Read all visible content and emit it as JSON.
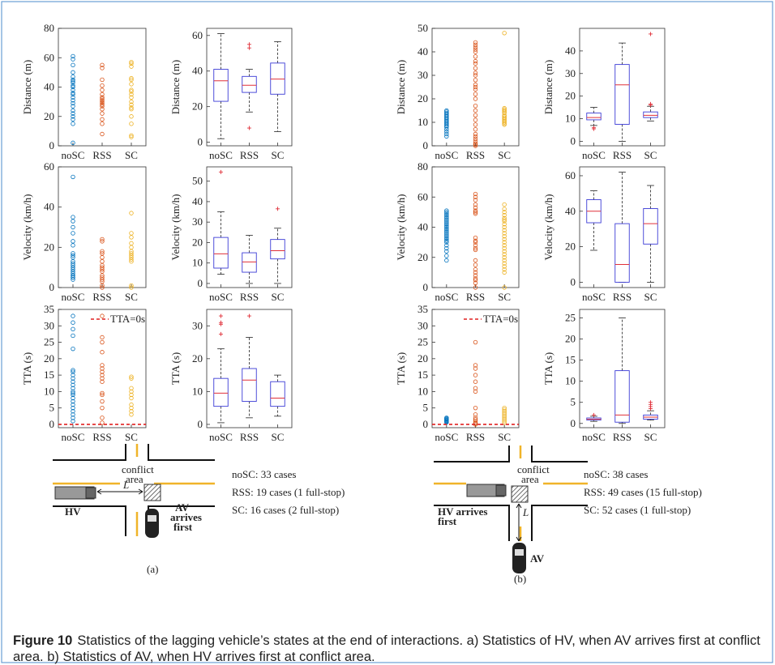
{
  "chart_data": [
    {
      "type": "scatter",
      "ylabel": "Distance (m)",
      "categories": [
        "noSC",
        "RSS",
        "SC"
      ],
      "colors": [
        "#0072bd",
        "#d95319",
        "#edb120"
      ],
      "ylim": [
        0,
        80
      ],
      "yticks": [
        0,
        20,
        40,
        60,
        80
      ],
      "values": [
        [
          61,
          59,
          55,
          50,
          47,
          45,
          44,
          43,
          41,
          40,
          38,
          36,
          35,
          33,
          31,
          29,
          27,
          24,
          22,
          20,
          18,
          15,
          2
        ],
        [
          55,
          53,
          45,
          41,
          38,
          35,
          33,
          32,
          31,
          30,
          29,
          28,
          27,
          25,
          22,
          18,
          15,
          8
        ],
        [
          57,
          56,
          54,
          46,
          45,
          42,
          38,
          37,
          35,
          33,
          30,
          28,
          26,
          25,
          20,
          15,
          7,
          6
        ]
      ]
    },
    {
      "type": "box",
      "ylabel": "Distance (m)",
      "categories": [
        "noSC",
        "RSS",
        "SC"
      ],
      "box_color": "#3b3bd6",
      "median_color": "#e0303a",
      "outlier_color": "#e0303a",
      "ylim": [
        -2,
        64
      ],
      "yticks": [
        0,
        20,
        40,
        60
      ],
      "boxes": [
        {
          "low": 2,
          "q1": 23,
          "median": 34.5,
          "q3": 41,
          "high": 61,
          "outliers": []
        },
        {
          "low": 17,
          "q1": 28,
          "median": 32,
          "q3": 37,
          "high": 41,
          "outliers": [
            55,
            53,
            8
          ]
        },
        {
          "low": 6,
          "q1": 27,
          "median": 35.5,
          "q3": 44.5,
          "high": 56.5,
          "outliers": []
        }
      ]
    },
    {
      "type": "scatter",
      "ylabel": "Distance (m)",
      "categories": [
        "noSC",
        "RSS",
        "SC"
      ],
      "colors": [
        "#0072bd",
        "#d95319",
        "#edb120"
      ],
      "ylim": [
        0,
        50
      ],
      "yticks": [
        0,
        10,
        20,
        30,
        40,
        50
      ],
      "values": [
        [
          15,
          14.5,
          14,
          13.5,
          13,
          12.5,
          12,
          11.5,
          11,
          10.5,
          10,
          9.5,
          9,
          8.5,
          8,
          7,
          6,
          5,
          4
        ],
        [
          44,
          43,
          42,
          41,
          40,
          38,
          36,
          35,
          33,
          31,
          30,
          28,
          26,
          25,
          24,
          22,
          20,
          17,
          15,
          13,
          11,
          9,
          7,
          5,
          4,
          3,
          2,
          1,
          0.5,
          0
        ],
        [
          48,
          16,
          15.5,
          15,
          14.5,
          14,
          13,
          12.5,
          12,
          11.5,
          11,
          10.5,
          10,
          9.5,
          9
        ]
      ]
    },
    {
      "type": "box",
      "ylabel": "Distance (m)",
      "categories": [
        "noSC",
        "RSS",
        "SC"
      ],
      "box_color": "#3b3bd6",
      "median_color": "#e0303a",
      "outlier_color": "#e0303a",
      "ylim": [
        -2,
        50
      ],
      "yticks": [
        0,
        10,
        20,
        30,
        40
      ],
      "boxes": [
        {
          "low": 7,
          "q1": 9.5,
          "median": 10.5,
          "q3": 12.5,
          "high": 15,
          "outliers": [
            5.5,
            6
          ]
        },
        {
          "low": 0,
          "q1": 7.5,
          "median": 25,
          "q3": 34,
          "high": 43.5,
          "outliers": []
        },
        {
          "low": 9,
          "q1": 10.5,
          "median": 11.5,
          "q3": 13,
          "high": 15.5,
          "outliers": [
            47.5,
            16.5,
            16
          ]
        }
      ]
    },
    {
      "type": "scatter",
      "ylabel": "Velocity (km/h)",
      "categories": [
        "noSC",
        "RSS",
        "SC"
      ],
      "colors": [
        "#0072bd",
        "#d95319",
        "#edb120"
      ],
      "ylim": [
        0,
        60
      ],
      "yticks": [
        0,
        20,
        40,
        60
      ],
      "values": [
        [
          55,
          35,
          33,
          30,
          27,
          23,
          21,
          17,
          16,
          15,
          13,
          12,
          11,
          10,
          9,
          8,
          7,
          6,
          6,
          5,
          5,
          4
        ],
        [
          24,
          23,
          18,
          17,
          15,
          13,
          11,
          10,
          9,
          8,
          6,
          5,
          4,
          3,
          1,
          0
        ],
        [
          37,
          27,
          25,
          22,
          20,
          18,
          17,
          16,
          15,
          14,
          13,
          1,
          0
        ]
      ]
    },
    {
      "type": "box",
      "ylabel": "Velocity (km/h)",
      "categories": [
        "noSC",
        "RSS",
        "SC"
      ],
      "box_color": "#3b3bd6",
      "median_color": "#e0303a",
      "outlier_color": "#e0303a",
      "ylim": [
        -2,
        57
      ],
      "yticks": [
        0,
        10,
        20,
        30,
        40,
        50
      ],
      "boxes": [
        {
          "low": 4.5,
          "q1": 7.5,
          "median": 14.5,
          "q3": 22.5,
          "high": 35,
          "outliers": [
            54.5
          ]
        },
        {
          "low": 0,
          "q1": 5.5,
          "median": 10.5,
          "q3": 15,
          "high": 23.5,
          "outliers": []
        },
        {
          "low": 0,
          "q1": 12,
          "median": 16,
          "q3": 21.5,
          "high": 27,
          "outliers": [
            36.5
          ]
        }
      ]
    },
    {
      "type": "scatter",
      "ylabel": "Velocity (km/h)",
      "categories": [
        "noSC",
        "RSS",
        "SC"
      ],
      "colors": [
        "#0072bd",
        "#d95319",
        "#edb120"
      ],
      "ylim": [
        0,
        80
      ],
      "yticks": [
        0,
        20,
        40,
        60,
        80
      ],
      "values": [
        [
          51,
          50,
          49,
          48,
          47,
          46,
          45,
          44,
          43,
          42,
          41,
          40,
          39,
          38,
          37,
          36,
          35,
          34,
          33,
          32,
          31,
          30,
          28,
          26,
          24,
          21,
          18
        ],
        [
          62,
          60,
          58,
          55,
          53,
          51,
          50,
          49,
          33,
          31,
          30,
          28,
          26,
          25,
          18,
          15,
          12,
          10,
          8,
          6,
          5,
          3,
          0
        ],
        [
          55,
          52,
          50,
          48,
          46,
          45,
          44,
          42,
          40,
          38,
          36,
          34,
          32,
          30,
          28,
          26,
          24,
          22,
          20,
          18,
          16,
          14,
          12,
          10,
          0
        ]
      ]
    },
    {
      "type": "box",
      "ylabel": "Velocity (km/h)",
      "categories": [
        "noSC",
        "RSS",
        "SC"
      ],
      "box_color": "#3b3bd6",
      "median_color": "#e0303a",
      "outlier_color": "#e0303a",
      "ylim": [
        -3,
        65
      ],
      "yticks": [
        0,
        20,
        40,
        60
      ],
      "boxes": [
        {
          "low": 18,
          "q1": 33.5,
          "median": 40,
          "q3": 46.5,
          "high": 51.5,
          "outliers": []
        },
        {
          "low": 0,
          "q1": 0,
          "median": 10,
          "q3": 33,
          "high": 62,
          "outliers": []
        },
        {
          "low": 0,
          "q1": 21.5,
          "median": 33,
          "q3": 41.5,
          "high": 54.5,
          "outliers": []
        }
      ]
    },
    {
      "type": "scatter",
      "ylabel": "TTA (s)",
      "categories": [
        "noSC",
        "RSS",
        "SC"
      ],
      "colors": [
        "#0072bd",
        "#d95319",
        "#edb120"
      ],
      "ylim": [
        -1,
        35
      ],
      "yticks": [
        0,
        5,
        10,
        15,
        20,
        25,
        30,
        35
      ],
      "ref_line": {
        "value": 0,
        "label": "TTA=0s",
        "color": "#e02020"
      },
      "values": [
        [
          33,
          31,
          29,
          27,
          23,
          16.5,
          16,
          15,
          14,
          13,
          12,
          11,
          10,
          9.5,
          9,
          8,
          7,
          6,
          5,
          4,
          3,
          2,
          1
        ],
        [
          33,
          26.5,
          25,
          22,
          18,
          17,
          16,
          15,
          14,
          13,
          9.5,
          9,
          7,
          5,
          2,
          0.5
        ],
        [
          14.5,
          14,
          11,
          10,
          9,
          8,
          6,
          5,
          4,
          3
        ]
      ]
    },
    {
      "type": "box",
      "ylabel": "TTA (s)",
      "categories": [
        "noSC",
        "RSS",
        "SC"
      ],
      "box_color": "#3b3bd6",
      "median_color": "#e0303a",
      "outlier_color": "#e0303a",
      "ylim": [
        -1,
        35
      ],
      "yticks": [
        0,
        10,
        20,
        30
      ],
      "boxes": [
        {
          "low": 0.5,
          "q1": 5.5,
          "median": 9.5,
          "q3": 14,
          "high": 23,
          "outliers": [
            33,
            31,
            30.5,
            27.5
          ]
        },
        {
          "low": 2,
          "q1": 7,
          "median": 13.5,
          "q3": 17,
          "high": 26.5,
          "outliers": [
            33
          ]
        },
        {
          "low": 2.5,
          "q1": 5.5,
          "median": 8,
          "q3": 13,
          "high": 15,
          "outliers": []
        }
      ]
    },
    {
      "type": "scatter",
      "ylabel": "TTA (s)",
      "categories": [
        "noSC",
        "RSS",
        "SC"
      ],
      "colors": [
        "#0072bd",
        "#d95319",
        "#edb120"
      ],
      "ylim": [
        -1,
        35
      ],
      "yticks": [
        0,
        5,
        10,
        15,
        20,
        25,
        30,
        35
      ],
      "ref_line": {
        "value": 0,
        "label": "TTA=0s",
        "color": "#e02020"
      },
      "values": [
        [
          2,
          1.8,
          1.6,
          1.4,
          1.2,
          1,
          0.8,
          0.6
        ],
        [
          25,
          18,
          17,
          15,
          13,
          11,
          10,
          5,
          3,
          2,
          1.5,
          1,
          0.5,
          0.3,
          0
        ],
        [
          5,
          4.5,
          4,
          3.5,
          3,
          2.5,
          2,
          1.5,
          1,
          0.5
        ]
      ]
    },
    {
      "type": "box",
      "ylabel": "TTA (s)",
      "categories": [
        "noSC",
        "RSS",
        "SC"
      ],
      "box_color": "#3b3bd6",
      "median_color": "#e0303a",
      "outlier_color": "#e0303a",
      "ylim": [
        -1,
        27
      ],
      "yticks": [
        0,
        5,
        10,
        15,
        20,
        25
      ],
      "boxes": [
        {
          "low": 0.5,
          "q1": 0.8,
          "median": 1,
          "q3": 1.3,
          "high": 1.7,
          "outliers": [
            2
          ]
        },
        {
          "low": 0,
          "q1": 0.3,
          "median": 2,
          "q3": 12.5,
          "high": 25,
          "outliers": []
        },
        {
          "low": 0.8,
          "q1": 1,
          "median": 1.5,
          "q3": 2,
          "high": 3,
          "outliers": [
            3.5,
            4,
            4.5,
            5
          ]
        }
      ]
    }
  ],
  "diagrams": [
    {
      "conflict": [
        "conflict",
        "area"
      ],
      "distance": "L",
      "hv": [
        "HV"
      ],
      "av": [
        "AV",
        "arrives",
        "first"
      ],
      "panel": "(a)",
      "cases": [
        "noSC: 33 cases",
        "RSS: 19 cases (1 full-stop)",
        "SC: 16 cases (2 full-stop)"
      ]
    },
    {
      "conflict": [
        "conflict",
        "area"
      ],
      "distance": "L",
      "hv": [
        "HV arrives",
        "first"
      ],
      "av": [
        "AV"
      ],
      "panel": "(b)",
      "cases": [
        "noSC: 38 cases",
        "RSS: 49 cases (15 full-stop)",
        "SC: 52 cases (1 full-stop)"
      ]
    }
  ],
  "caption": {
    "label": "Figure 10",
    "text": "Statistics of the lagging vehicle’s states at the end of interactions. a) Statistics of HV, when AV arrives first at conflict area. b) Statistics of AV, when HV arrives first at conflict area."
  }
}
